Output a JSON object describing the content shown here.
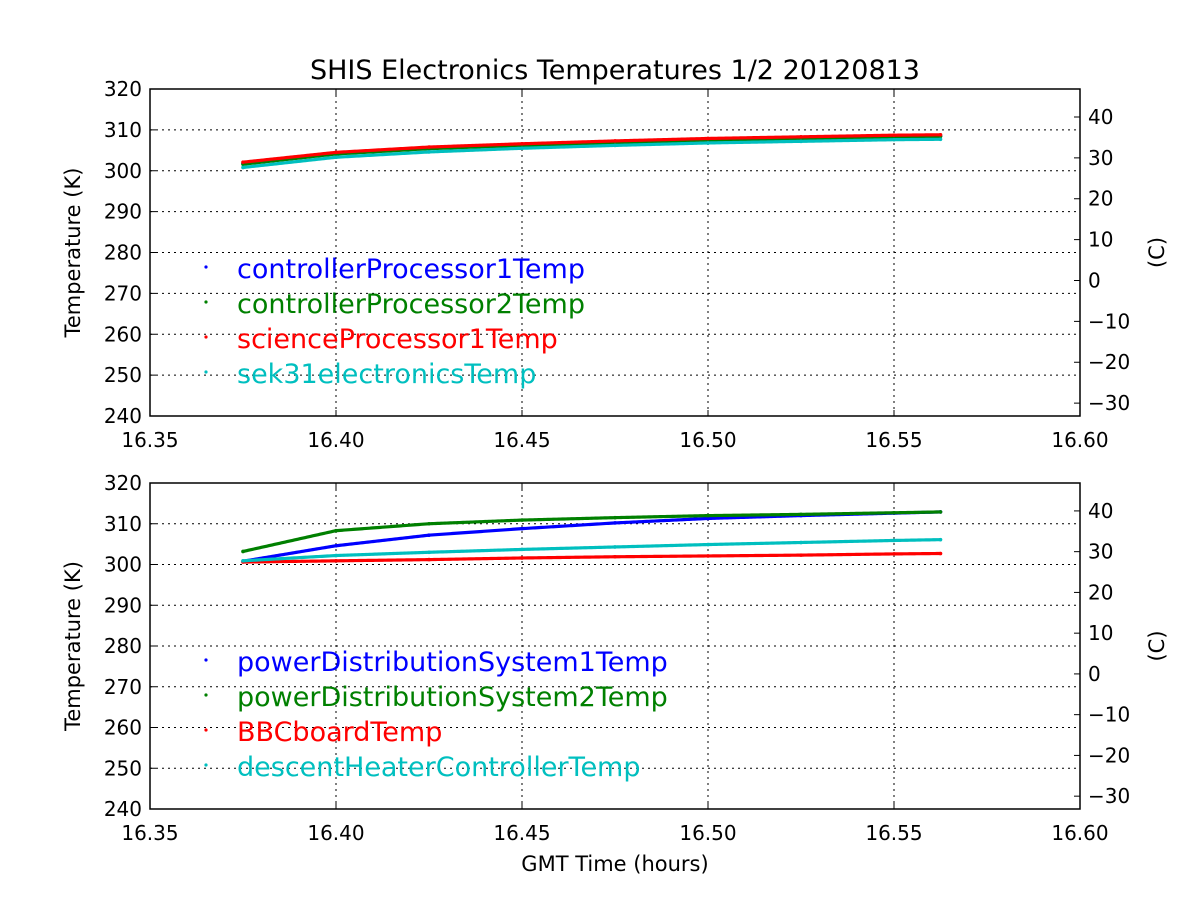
{
  "chart_data": [
    {
      "type": "scatter",
      "title": "SHIS Electronics Temperatures 1/2 20120813",
      "xlabel": "",
      "ylabel": "Temperature (K)",
      "ylabel_right": "(C)",
      "xlim": [
        16.35,
        16.6
      ],
      "ylim": [
        240,
        320
      ],
      "xticks": [
        "16.35",
        "16.40",
        "16.45",
        "16.50",
        "16.55",
        "16.60"
      ],
      "yticks": [
        "240",
        "250",
        "260",
        "270",
        "280",
        "290",
        "300",
        "310",
        "320"
      ],
      "yticks_right": [
        "−30",
        "−20",
        "−10",
        "0",
        "10",
        "20",
        "30",
        "40"
      ],
      "grid": true,
      "legend_position": "left",
      "series": [
        {
          "name": "controllerProcessor1Temp",
          "color": "#0000ff",
          "x": [
            16.375,
            16.4,
            16.425,
            16.45,
            16.475,
            16.5,
            16.525,
            16.55,
            16.5625
          ],
          "y": [
            301.8,
            304.2,
            305.5,
            306.3,
            307.0,
            307.6,
            308.0,
            308.4,
            308.5
          ]
        },
        {
          "name": "controllerProcessor2Temp",
          "color": "#008000",
          "x": [
            16.375,
            16.4,
            16.425,
            16.45,
            16.475,
            16.5,
            16.525,
            16.55,
            16.5625
          ],
          "y": [
            301.6,
            304.1,
            305.4,
            306.2,
            306.9,
            307.5,
            307.9,
            308.3,
            308.4
          ]
        },
        {
          "name": "scienceProcessor1Temp",
          "color": "#ff0000",
          "x": [
            16.375,
            16.4,
            16.425,
            16.45,
            16.475,
            16.5,
            16.525,
            16.55,
            16.5625
          ],
          "y": [
            302.1,
            304.5,
            305.8,
            306.6,
            307.3,
            307.9,
            308.3,
            308.7,
            308.8
          ]
        },
        {
          "name": "sek31electronicsTemp",
          "color": "#00bfbf",
          "x": [
            16.375,
            16.4,
            16.425,
            16.45,
            16.475,
            16.5,
            16.525,
            16.55,
            16.5625
          ],
          "y": [
            300.8,
            303.3,
            304.6,
            305.5,
            306.2,
            306.8,
            307.2,
            307.6,
            307.7
          ]
        }
      ]
    },
    {
      "type": "scatter",
      "title": "",
      "xlabel": "GMT Time (hours)",
      "ylabel": "Temperature (K)",
      "ylabel_right": "(C)",
      "xlim": [
        16.35,
        16.6
      ],
      "ylim": [
        240,
        320
      ],
      "xticks": [
        "16.35",
        "16.40",
        "16.45",
        "16.50",
        "16.55",
        "16.60"
      ],
      "yticks": [
        "240",
        "250",
        "260",
        "270",
        "280",
        "290",
        "300",
        "310",
        "320"
      ],
      "yticks_right": [
        "−30",
        "−20",
        "−10",
        "0",
        "10",
        "20",
        "30",
        "40"
      ],
      "grid": true,
      "legend_position": "left",
      "series": [
        {
          "name": "powerDistributionSystem1Temp",
          "color": "#0000ff",
          "x": [
            16.375,
            16.4,
            16.425,
            16.45,
            16.475,
            16.5,
            16.525,
            16.55,
            16.5625
          ],
          "y": [
            300.8,
            304.6,
            307.2,
            308.8,
            310.2,
            311.3,
            312.0,
            312.6,
            312.9
          ]
        },
        {
          "name": "powerDistributionSystem2Temp",
          "color": "#008000",
          "x": [
            16.375,
            16.4,
            16.425,
            16.45,
            16.475,
            16.5,
            16.525,
            16.55,
            16.5625
          ],
          "y": [
            303.2,
            308.3,
            310.0,
            310.9,
            311.5,
            312.0,
            312.3,
            312.7,
            312.9
          ]
        },
        {
          "name": "BBCboardTemp",
          "color": "#ff0000",
          "x": [
            16.375,
            16.4,
            16.425,
            16.45,
            16.475,
            16.5,
            16.525,
            16.55,
            16.5625
          ],
          "y": [
            300.6,
            300.9,
            301.2,
            301.6,
            301.9,
            302.1,
            302.3,
            302.6,
            302.7
          ]
        },
        {
          "name": "descentHeaterControllerTemp",
          "color": "#00bfbf",
          "x": [
            16.375,
            16.4,
            16.425,
            16.45,
            16.475,
            16.5,
            16.525,
            16.55,
            16.5625
          ],
          "y": [
            300.9,
            302.2,
            303.0,
            303.7,
            304.3,
            304.9,
            305.4,
            305.9,
            306.1
          ]
        }
      ]
    }
  ]
}
